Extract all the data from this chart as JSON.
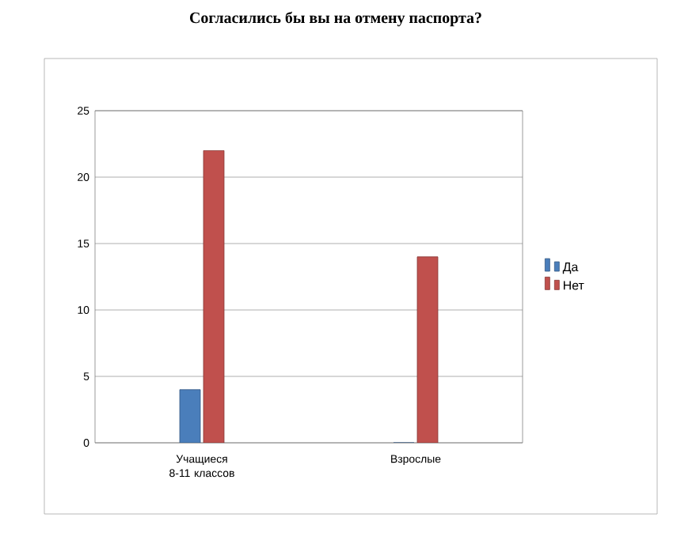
{
  "chart_data": {
    "type": "bar",
    "title": "Согласились бы вы на отмену паспорта?",
    "categories": [
      "Учащиеся 8-11 классов",
      "Взрослые"
    ],
    "series": [
      {
        "name": "Да",
        "color": "#4a7ebb",
        "values": [
          4,
          0
        ]
      },
      {
        "name": "Нет",
        "color": "#c0504d",
        "values": [
          22,
          14
        ]
      }
    ],
    "ylim": [
      0,
      25
    ],
    "yticks": [
      0,
      5,
      10,
      15,
      20,
      25
    ],
    "grid": "y",
    "legend": "right"
  }
}
